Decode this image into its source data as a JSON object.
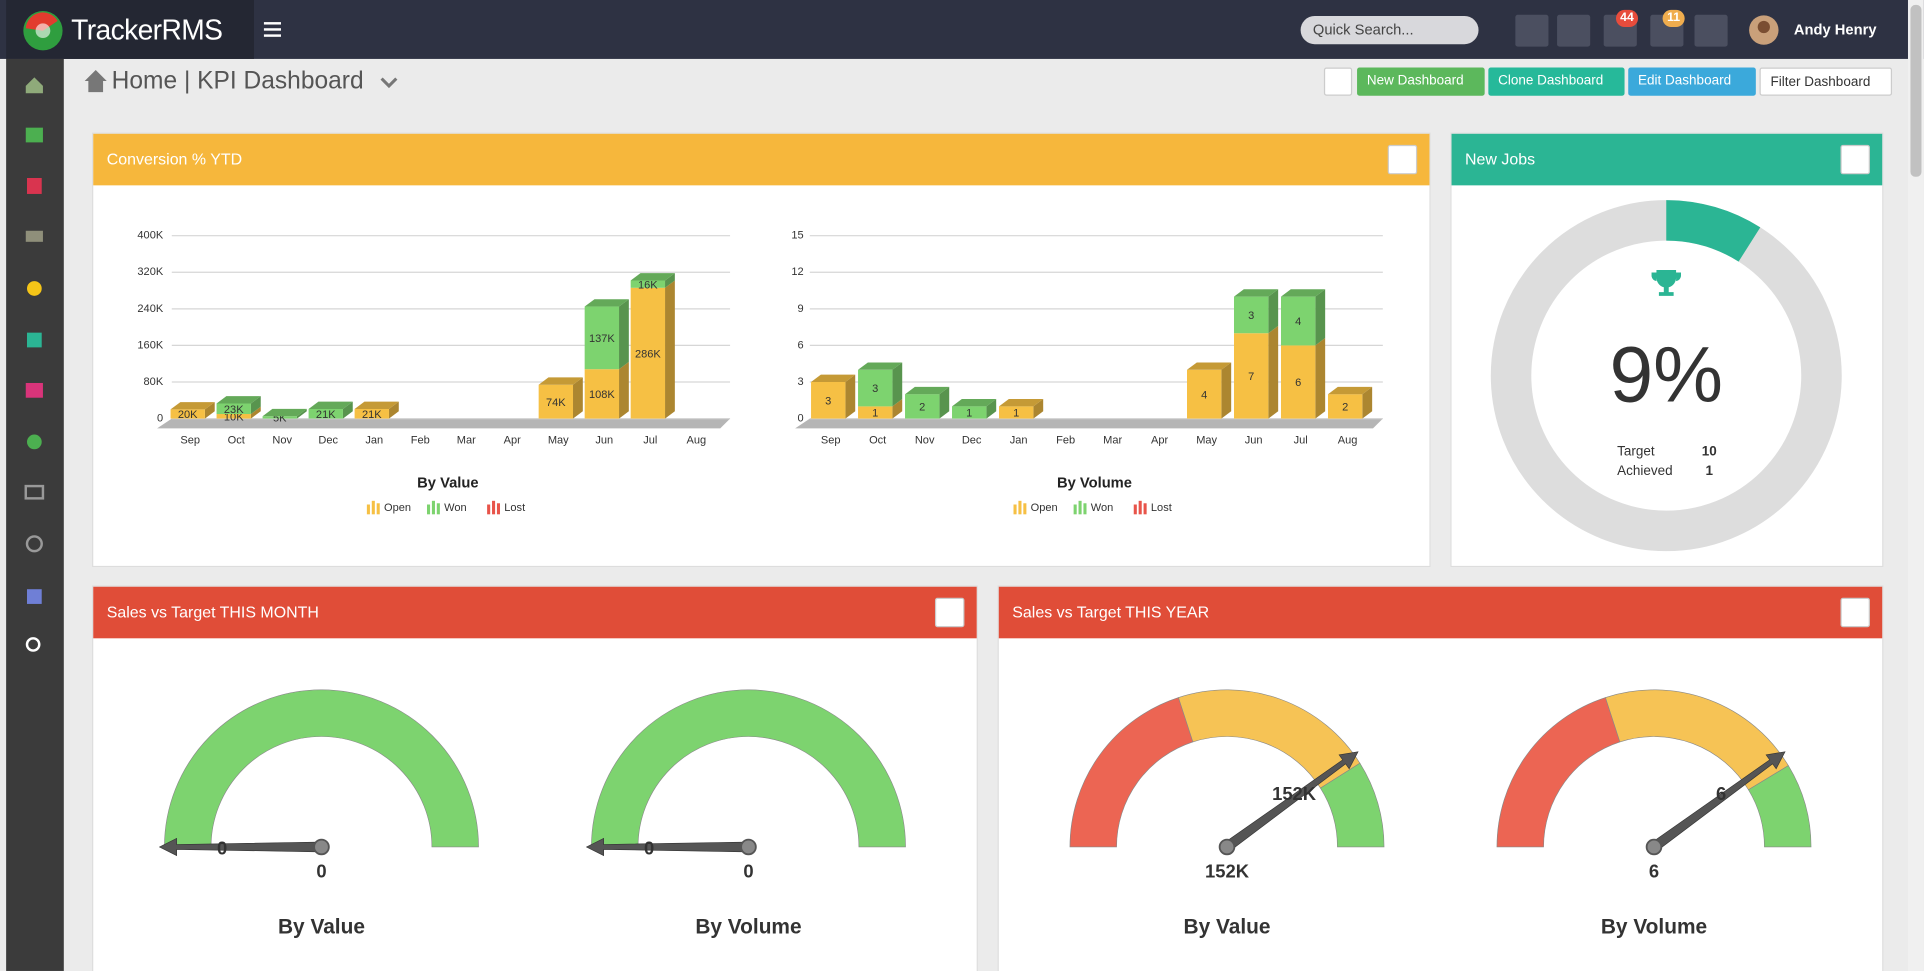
{
  "header": {
    "brand": "TrackerRMS",
    "search_placeholder": "Quick Search...",
    "notifications": "44",
    "flags": "11",
    "user": "Andy Henry"
  },
  "breadcrumb": {
    "home": "Home",
    "separator": "|",
    "page": "KPI Dashboard"
  },
  "toolbar": [
    "New Dashboard",
    "Clone Dashboard",
    "Edit Dashboard",
    "Filter Dashboard"
  ],
  "panels": {
    "conversion": "Conversion % YTD",
    "new_jobs": "New Jobs",
    "sales_month": "Sales vs Target THIS MONTH",
    "sales_year": "Sales vs Target THIS YEAR"
  },
  "chart_data": [
    {
      "type": "bar",
      "stacked": true,
      "title": "By Value",
      "categories": [
        "Sep",
        "Oct",
        "Nov",
        "Dec",
        "Jan",
        "Feb",
        "Mar",
        "Apr",
        "May",
        "Jun",
        "Jul",
        "Aug"
      ],
      "series": [
        {
          "name": "Open",
          "color": "#f6c044",
          "values": [
            20000,
            10000,
            0,
            0,
            21000,
            0,
            0,
            0,
            74000,
            108000,
            286000,
            0
          ],
          "value_labels": [
            "20K",
            "10K",
            null,
            null,
            "21K",
            null,
            null,
            null,
            "74K",
            "108K",
            "286K",
            null
          ]
        },
        {
          "name": "Won",
          "color": "#7dd36f",
          "values": [
            0,
            23000,
            5000,
            21000,
            0,
            0,
            0,
            0,
            0,
            137000,
            16000,
            0
          ],
          "value_labels": [
            null,
            "23K",
            "5K",
            "21K",
            null,
            null,
            null,
            null,
            null,
            "137K",
            "16K",
            null
          ]
        },
        {
          "name": "Lost",
          "color": "#e8544a",
          "values": [
            0,
            0,
            0,
            0,
            0,
            0,
            0,
            0,
            0,
            0,
            0,
            0
          ],
          "value_labels": [
            null,
            null,
            null,
            null,
            null,
            null,
            null,
            null,
            null,
            null,
            null,
            null
          ]
        }
      ],
      "ylim": [
        0,
        400000
      ],
      "yticks": [
        0,
        {
          "value": 80000,
          "label": "80K"
        },
        {
          "value": 160000,
          "label": "160K"
        },
        {
          "value": 240000,
          "label": "240K"
        },
        {
          "value": 320000,
          "label": "320K"
        },
        {
          "value": 400000,
          "label": "400K"
        }
      ],
      "grid": true
    },
    {
      "type": "bar",
      "stacked": true,
      "title": "By Volume",
      "categories": [
        "Sep",
        "Oct",
        "Nov",
        "Dec",
        "Jan",
        "Feb",
        "Mar",
        "Apr",
        "May",
        "Jun",
        "Jul",
        "Aug"
      ],
      "series": [
        {
          "name": "Open",
          "color": "#f6c044",
          "values": [
            3,
            1,
            0,
            0,
            1,
            0,
            0,
            0,
            4,
            7,
            6,
            2
          ]
        },
        {
          "name": "Won",
          "color": "#7dd36f",
          "values": [
            0,
            3,
            2,
            1,
            0,
            0,
            0,
            0,
            0,
            3,
            4,
            0
          ]
        },
        {
          "name": "Lost",
          "color": "#e8544a",
          "values": [
            0,
            0,
            0,
            0,
            0,
            0,
            0,
            0,
            0,
            0,
            0,
            0
          ]
        }
      ],
      "ylim": [
        0,
        15
      ],
      "yticks": [
        0,
        3,
        6,
        9,
        12,
        15
      ],
      "grid": true
    },
    {
      "type": "donut",
      "value": 9,
      "value_label": "9%",
      "color": "#2bb594",
      "track_color": "#dddddd",
      "rows": [
        {
          "label": "Target",
          "value": 10
        },
        {
          "label": "Achieved",
          "value": 1
        }
      ]
    },
    {
      "type": "gauge",
      "title": "By Value",
      "value": 0,
      "range": [
        0,
        1
      ],
      "bands": [
        {
          "to": 1,
          "color": "#7dd36f"
        }
      ]
    },
    {
      "type": "gauge",
      "title": "By Volume",
      "value": 0,
      "range": [
        0,
        1
      ],
      "bands": [
        {
          "to": 1,
          "color": "#7dd36f"
        }
      ]
    },
    {
      "type": "gauge",
      "title": "By Value",
      "value": 152000,
      "value_label": "152K",
      "range": [
        0,
        190000
      ],
      "bands": [
        {
          "to": 76000,
          "color": "#ec6553"
        },
        {
          "to": 156000,
          "color": "#f6c355"
        },
        {
          "to": 190000,
          "color": "#7dd36f"
        }
      ]
    },
    {
      "type": "gauge",
      "title": "By Volume",
      "value": 6,
      "range": [
        0,
        7.5
      ],
      "bands": [
        {
          "to": 3,
          "color": "#ec6553"
        },
        {
          "to": 6.2,
          "color": "#f6c355"
        },
        {
          "to": 7.5,
          "color": "#7dd36f"
        }
      ]
    }
  ]
}
